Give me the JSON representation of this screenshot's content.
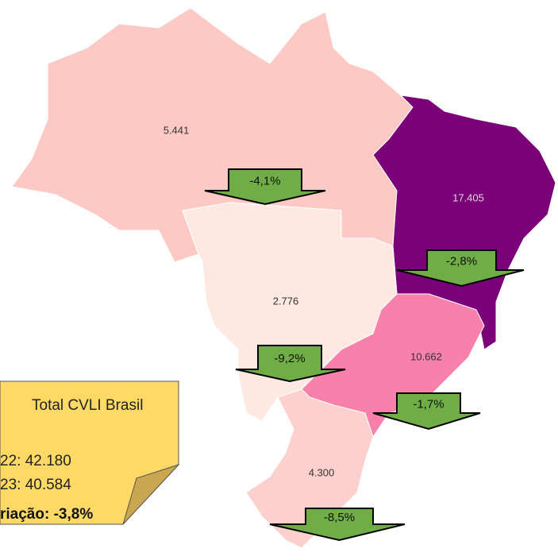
{
  "regions": [
    {
      "value": "5.441",
      "change": "-4,1%",
      "color": "#fcc9c4"
    },
    {
      "value": "17.405",
      "change": "-2,8%",
      "color": "#7a0177"
    },
    {
      "value": "2.776",
      "change": "-9,2%",
      "color": "#fde8e2"
    },
    {
      "value": "10.662",
      "change": "-1,7%",
      "color": "#f880aa"
    },
    {
      "value": "4.300",
      "change": "-8,5%",
      "color": "#fcd0cc"
    }
  ],
  "note": {
    "title": "Total CVLI Brasil",
    "lines": [
      "22: 42.180",
      "23: 40.584"
    ],
    "variation": "riação: -3,8%"
  }
}
